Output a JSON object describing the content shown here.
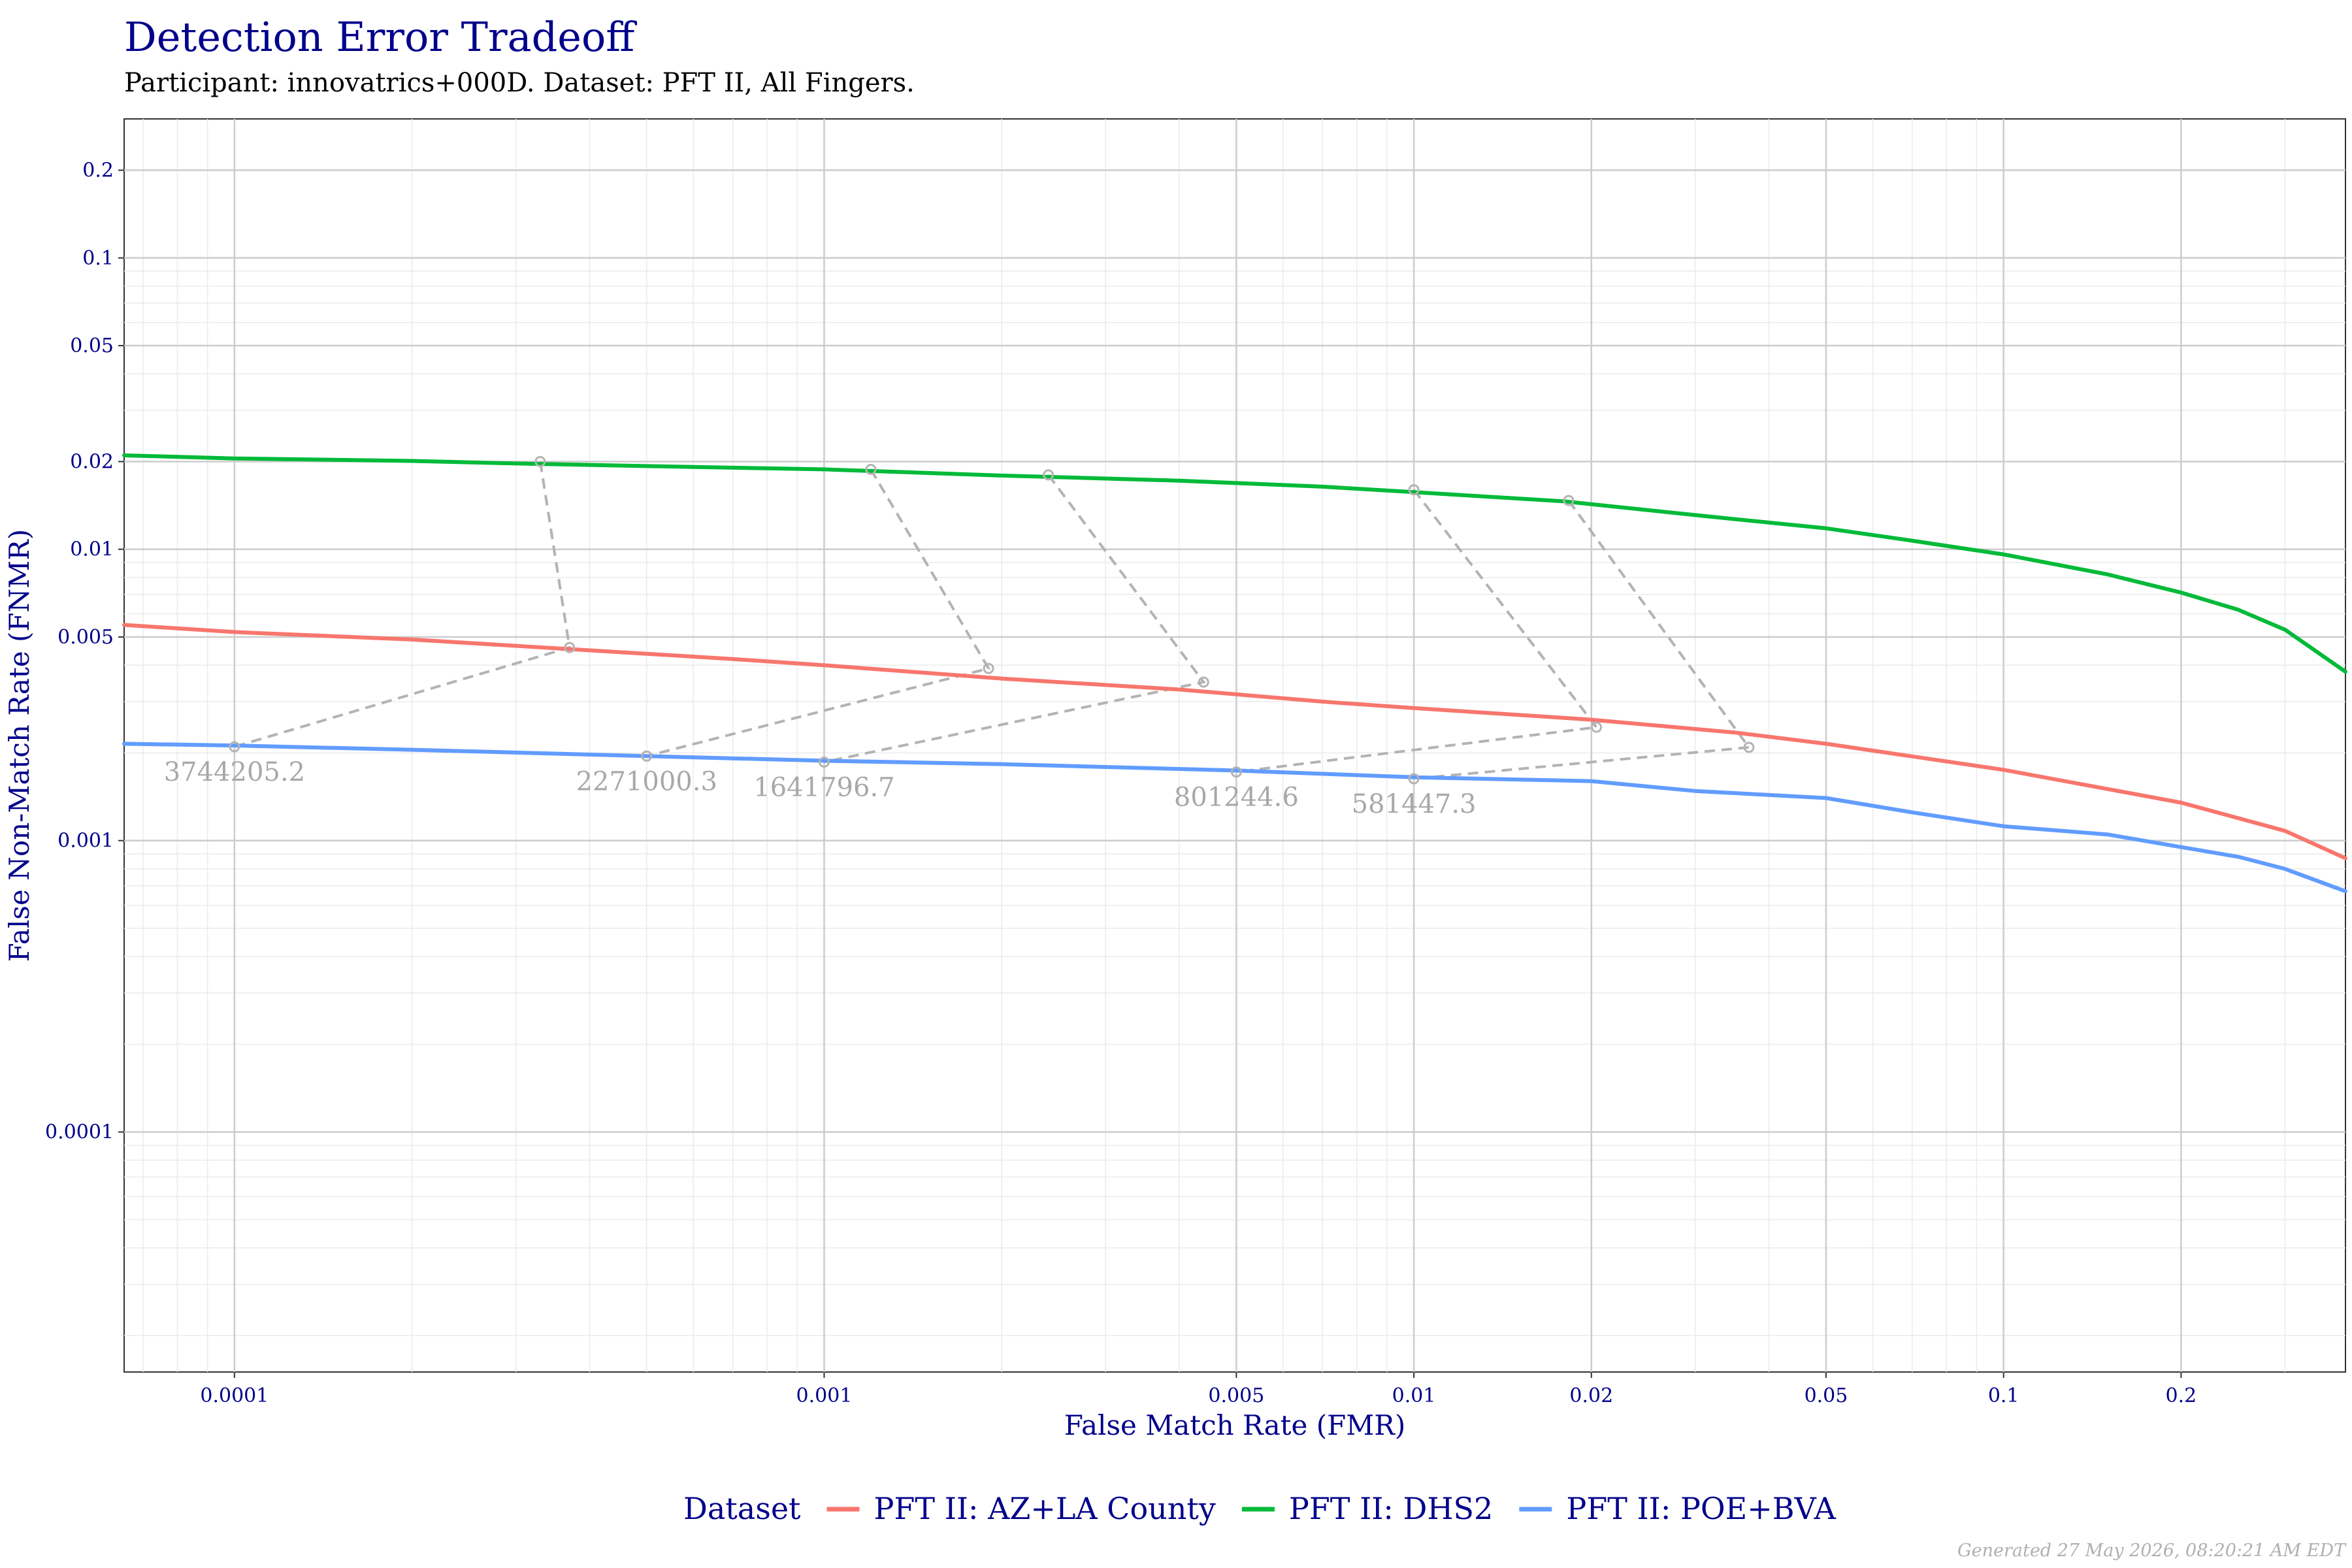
{
  "chart_data": {
    "type": "line",
    "title": "Detection Error Tradeoff",
    "subtitle": "Participant: innovatrics+000D. Dataset: PFT II, All Fingers.",
    "xlabel": "False Match Rate (FMR)",
    "ylabel": "False Non-Match Rate (FNMR)",
    "x_scale": "log",
    "y_scale": "log",
    "xlim": [
      6.5e-05,
      0.38
    ],
    "ylim": [
      1.5e-05,
      0.3
    ],
    "x_ticks": [
      {
        "value": 0.0001,
        "label": "0.0001"
      },
      {
        "value": 0.001,
        "label": "0.001"
      },
      {
        "value": 0.005,
        "label": "0.005"
      },
      {
        "value": 0.01,
        "label": "0.01"
      },
      {
        "value": 0.02,
        "label": "0.02"
      },
      {
        "value": 0.05,
        "label": "0.05"
      },
      {
        "value": 0.1,
        "label": "0.1"
      },
      {
        "value": 0.2,
        "label": "0.2"
      }
    ],
    "y_ticks": [
      {
        "value": 0.2,
        "label": "0.2"
      },
      {
        "value": 0.1,
        "label": "0.1"
      },
      {
        "value": 0.05,
        "label": "0.05"
      },
      {
        "value": 0.02,
        "label": "0.02"
      },
      {
        "value": 0.01,
        "label": "0.01"
      },
      {
        "value": 0.005,
        "label": "0.005"
      },
      {
        "value": 0.001,
        "label": "0.001"
      },
      {
        "value": 0.0001,
        "label": "0.0001"
      }
    ],
    "grid": true,
    "legend": {
      "title": "Dataset",
      "position": "bottom"
    },
    "series": [
      {
        "name": "PFT II: AZ+LA County",
        "color": "#f8766d",
        "x": [
          6.5e-05,
          0.0001,
          0.0002,
          0.0004,
          0.0007,
          0.001,
          0.002,
          0.004,
          0.007,
          0.01,
          0.02,
          0.035,
          0.05,
          0.1,
          0.2,
          0.3,
          0.38
        ],
        "y": [
          0.0055,
          0.0052,
          0.0049,
          0.0045,
          0.0042,
          0.004,
          0.0036,
          0.0033,
          0.003,
          0.00285,
          0.0026,
          0.00235,
          0.00215,
          0.00175,
          0.00135,
          0.00108,
          0.00087
        ]
      },
      {
        "name": "PFT II: DHS2",
        "color": "#00ba38",
        "x": [
          6.5e-05,
          0.0001,
          0.0002,
          0.0003,
          0.0005,
          0.001,
          0.002,
          0.004,
          0.007,
          0.01,
          0.018,
          0.03,
          0.05,
          0.07,
          0.1,
          0.15,
          0.2,
          0.25,
          0.3,
          0.38
        ],
        "y": [
          0.021,
          0.0205,
          0.0201,
          0.0197,
          0.0193,
          0.0188,
          0.0179,
          0.0172,
          0.0164,
          0.0157,
          0.0146,
          0.0131,
          0.0118,
          0.0107,
          0.0096,
          0.0082,
          0.0071,
          0.0062,
          0.0053,
          0.0038
        ]
      },
      {
        "name": "PFT II: POE+BVA",
        "color": "#619cff",
        "x": [
          6.5e-05,
          0.0001,
          0.0002,
          0.0005,
          0.001,
          0.002,
          0.005,
          0.01,
          0.02,
          0.03,
          0.05,
          0.07,
          0.1,
          0.15,
          0.2,
          0.25,
          0.3,
          0.38
        ],
        "y": [
          0.00215,
          0.00212,
          0.00205,
          0.00195,
          0.00188,
          0.00183,
          0.00174,
          0.00165,
          0.0016,
          0.00148,
          0.0014,
          0.00125,
          0.00112,
          0.00105,
          0.00095,
          0.00088,
          0.0008,
          0.00067
        ]
      }
    ],
    "thresholds": [
      {
        "label": "3744205.2",
        "points": [
          {
            "x": 0.00033,
            "y": 0.02
          },
          {
            "x": 0.00037,
            "y": 0.0046
          },
          {
            "x": 0.0001,
            "y": 0.0021
          }
        ]
      },
      {
        "label": "2271000.3",
        "points": [
          {
            "x": 0.0012,
            "y": 0.0188
          },
          {
            "x": 0.0019,
            "y": 0.0039
          },
          {
            "x": 0.0005,
            "y": 0.00195
          }
        ]
      },
      {
        "label": "1641796.7",
        "points": [
          {
            "x": 0.0024,
            "y": 0.018
          },
          {
            "x": 0.0044,
            "y": 0.0035
          },
          {
            "x": 0.001,
            "y": 0.00186
          }
        ]
      },
      {
        "label": "801244.6",
        "points": [
          {
            "x": 0.01,
            "y": 0.016
          },
          {
            "x": 0.0204,
            "y": 0.00245
          },
          {
            "x": 0.005,
            "y": 0.00172
          }
        ]
      },
      {
        "label": "581447.3",
        "points": [
          {
            "x": 0.0183,
            "y": 0.0147
          },
          {
            "x": 0.037,
            "y": 0.00209
          },
          {
            "x": 0.01,
            "y": 0.00163
          }
        ]
      }
    ]
  },
  "footer": "Generated 27 May 2026, 08:20:21 AM EDT"
}
